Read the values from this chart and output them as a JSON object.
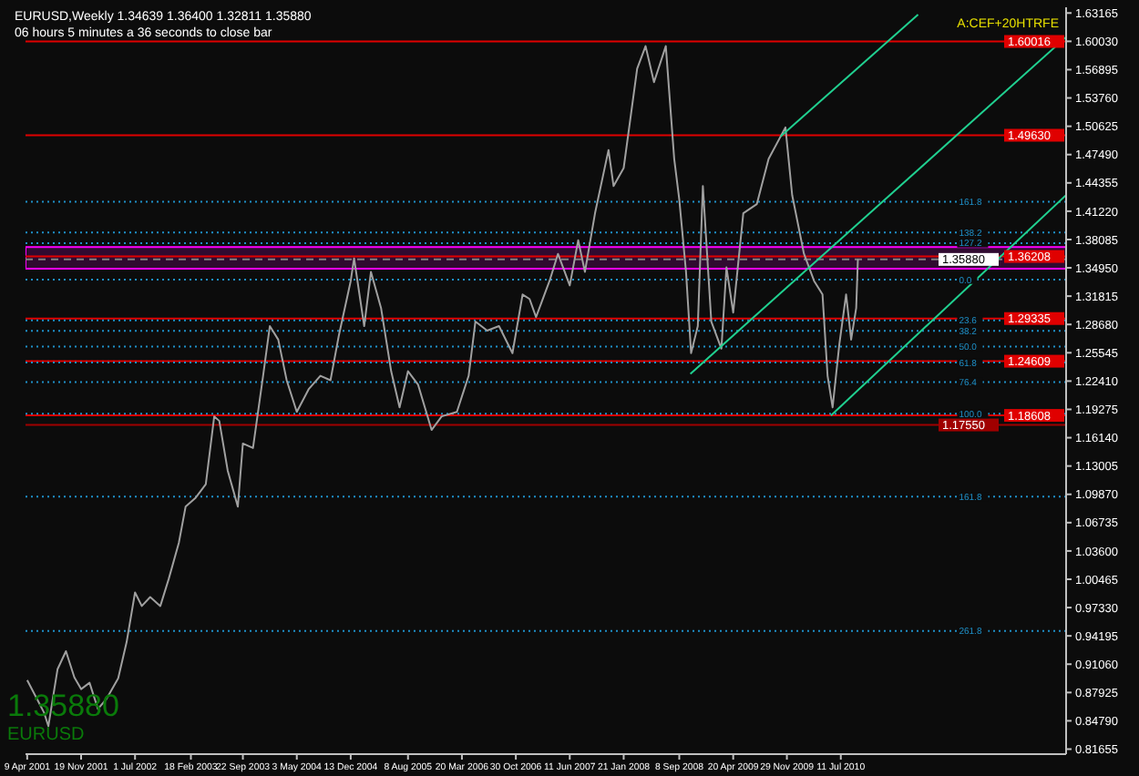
{
  "chart_data": {
    "type": "line",
    "title": "EURUSD,Weekly  1.34639 1.36400 1.32811 1.35880",
    "subtitle": "06 hours 5 minutes a 36 seconds to close bar",
    "annotations": [
      "A:CEF+20HTRFE",
      "1.35880",
      "EURUSD",
      {
        "text": "161.8",
        "x": "2011-11-14",
        "y": 1.4228
      },
      {
        "text": "138.2",
        "x": "2011-11-14",
        "y": 1.3887
      },
      {
        "text": "127.2",
        "x": "2011-11-14",
        "y": 1.3769
      },
      {
        "text": "0.0",
        "x": "2011-11-14",
        "y": 1.3365
      },
      {
        "text": "23.6",
        "x": "2011-11-14",
        "y": 1.2914
      },
      {
        "text": "38.2",
        "x": "2011-11-14",
        "y": 1.2797
      },
      {
        "text": "50.0",
        "x": "2011-11-14",
        "y": 1.2622
      },
      {
        "text": "61.8",
        "x": "2011-11-14",
        "y": 1.2447
      },
      {
        "text": "76.4",
        "x": "2011-11-14",
        "y": 1.223
      },
      {
        "text": "100.0",
        "x": "2011-11-14",
        "y": 1.1879
      },
      {
        "text": "161.8",
        "x": "2011-11-14",
        "y": 1.0961
      },
      {
        "text": "261.8",
        "x": "2011-11-14",
        "y": 0.9475
      }
    ],
    "series": [
      {
        "color": "#a0a0a0",
        "x": [
          "2001-04-09",
          "2001-05-14",
          "2001-06-18",
          "2001-07-06",
          "2001-08-13",
          "2001-09-17",
          "2001-10-22",
          "2001-11-19",
          "2001-12-24",
          "2002-01-28",
          "2002-03-04",
          "2002-04-22",
          "2002-05-27",
          "2002-07-01",
          "2002-07-29",
          "2002-09-02",
          "2002-10-14",
          "2002-11-18",
          "2002-12-30",
          "2003-01-27",
          "2003-03-10",
          "2003-04-21",
          "2003-05-26",
          "2003-06-16",
          "2003-07-21",
          "2003-09-01",
          "2003-09-22",
          "2003-11-03",
          "2003-12-15",
          "2004-01-12",
          "2004-02-16",
          "2004-03-22",
          "2004-05-03",
          "2004-06-21",
          "2004-08-09",
          "2004-09-20",
          "2004-10-25",
          "2004-12-13",
          "2004-12-27",
          "2005-02-07",
          "2005-03-07",
          "2005-04-18",
          "2005-05-30",
          "2005-07-04",
          "2005-08-08",
          "2005-09-19",
          "2005-11-14",
          "2005-12-26",
          "2006-02-27",
          "2006-04-17",
          "2006-05-15",
          "2006-07-03",
          "2006-08-21",
          "2006-10-16",
          "2006-11-27",
          "2006-12-26",
          "2007-01-22",
          "2007-03-19",
          "2007-04-23",
          "2007-06-11",
          "2007-07-16",
          "2007-08-13",
          "2007-09-24",
          "2007-11-19",
          "2007-12-10",
          "2008-01-21",
          "2008-03-17",
          "2008-04-21",
          "2008-05-26",
          "2008-07-14",
          "2008-08-18",
          "2008-09-08",
          "2008-10-06",
          "2008-10-27",
          "2008-11-24",
          "2008-12-15",
          "2009-01-19",
          "2009-03-02",
          "2009-03-23",
          "2009-04-20",
          "2009-06-01",
          "2009-07-27",
          "2009-09-14",
          "2009-11-23",
          "2009-12-21",
          "2010-02-08",
          "2010-03-22",
          "2010-04-26",
          "2010-05-17",
          "2010-06-07",
          "2010-07-05",
          "2010-08-02",
          "2010-08-23",
          "2010-09-13",
          "2010-09-20"
        ],
        "values": [
          0.893,
          0.875,
          0.857,
          0.842,
          0.905,
          0.925,
          0.896,
          0.883,
          0.89,
          0.861,
          0.872,
          0.895,
          0.935,
          0.99,
          0.975,
          0.985,
          0.975,
          1.005,
          1.045,
          1.085,
          1.095,
          1.11,
          1.185,
          1.18,
          1.125,
          1.085,
          1.155,
          1.15,
          1.23,
          1.285,
          1.27,
          1.225,
          1.19,
          1.215,
          1.23,
          1.225,
          1.275,
          1.335,
          1.36,
          1.285,
          1.345,
          1.305,
          1.235,
          1.195,
          1.235,
          1.22,
          1.17,
          1.185,
          1.19,
          1.23,
          1.29,
          1.28,
          1.285,
          1.255,
          1.32,
          1.315,
          1.295,
          1.335,
          1.365,
          1.33,
          1.38,
          1.345,
          1.41,
          1.48,
          1.44,
          1.46,
          1.57,
          1.595,
          1.555,
          1.595,
          1.47,
          1.425,
          1.345,
          1.255,
          1.285,
          1.44,
          1.29,
          1.26,
          1.35,
          1.3,
          1.41,
          1.42,
          1.47,
          1.505,
          1.43,
          1.365,
          1.335,
          1.32,
          1.23,
          1.195,
          1.265,
          1.32,
          1.27,
          1.305,
          1.359
        ]
      },
      {
        "type": "line",
        "color": "#20d090",
        "x": [
          "2008-10-24",
          "2013-02-01"
        ],
        "values": [
          1.232,
          1.605
        ]
      },
      {
        "type": "line",
        "color": "#20d090",
        "x": [
          "2009-11-03",
          "2011-05-28"
        ],
        "values": [
          1.495,
          1.63
        ]
      },
      {
        "type": "line",
        "color": "#20d090",
        "x": [
          "2010-05-31",
          "2013-02-01"
        ],
        "values": [
          1.186,
          1.43
        ]
      }
    ],
    "xlim": [
      "2001-04-02",
      "2013-02-01"
    ],
    "xticks": [
      {
        "value": "2001-04-09",
        "label": "9 Apr 2001"
      },
      {
        "value": "2001-11-19",
        "label": "19 Nov 2001"
      },
      {
        "value": "2002-07-01",
        "label": "1 Jul 2002"
      },
      {
        "value": "2003-02-18",
        "label": "18 Feb 2003"
      },
      {
        "value": "2003-09-22",
        "label": "22 Sep 2003"
      },
      {
        "value": "2004-05-03",
        "label": "3 May 2004"
      },
      {
        "value": "2004-12-13",
        "label": "13 Dec 2004"
      },
      {
        "value": "2005-08-08",
        "label": "8 Aug 2005"
      },
      {
        "value": "2006-03-20",
        "label": "20 Mar 2006"
      },
      {
        "value": "2006-10-30",
        "label": "30 Oct 2006"
      },
      {
        "value": "2007-06-11",
        "label": "11 Jun 2007"
      },
      {
        "value": "2008-01-21",
        "label": "21 Jan 2008"
      },
      {
        "value": "2008-09-08",
        "label": "8 Sep 2008"
      },
      {
        "value": "2009-04-20",
        "label": "20 Apr 2009"
      },
      {
        "value": "2009-11-29",
        "label": "29 Nov 2009"
      },
      {
        "value": "2010-07-11",
        "label": "11 Jul 2010"
      }
    ],
    "ylim": [
      0.811,
      1.638
    ],
    "yticks": [
      {
        "value": 0.81655,
        "label": "0.81655"
      },
      {
        "value": 0.8479,
        "label": "0.84790"
      },
      {
        "value": 0.87925,
        "label": "0.87925"
      },
      {
        "value": 0.9106,
        "label": "0.91060"
      },
      {
        "value": 0.94195,
        "label": "0.94195"
      },
      {
        "value": 0.9733,
        "label": "0.97330"
      },
      {
        "value": 1.00465,
        "label": "1.00465"
      },
      {
        "value": 1.036,
        "label": "1.03600"
      },
      {
        "value": 1.06735,
        "label": "1.06735"
      },
      {
        "value": 1.0987,
        "label": "1.09870"
      },
      {
        "value": 1.13005,
        "label": "1.13005"
      },
      {
        "value": 1.1614,
        "label": "1.16140"
      },
      {
        "value": 1.19275,
        "label": "1.19275"
      },
      {
        "value": 1.2241,
        "label": "1.22410"
      },
      {
        "value": 1.25545,
        "label": "1.25545"
      },
      {
        "value": 1.2868,
        "label": "1.28680"
      },
      {
        "value": 1.31815,
        "label": "1.31815"
      },
      {
        "value": 1.3495,
        "label": "1.34950"
      },
      {
        "value": 1.38085,
        "label": "1.38085"
      },
      {
        "value": 1.4122,
        "label": "1.41220"
      },
      {
        "value": 1.44355,
        "label": "1.44355"
      },
      {
        "value": 1.4749,
        "label": "1.47490"
      },
      {
        "value": 1.50625,
        "label": "1.50625"
      },
      {
        "value": 1.5376,
        "label": "1.53760"
      },
      {
        "value": 1.56895,
        "label": "1.56895"
      },
      {
        "value": 1.6003,
        "label": "1.60030"
      },
      {
        "value": 1.63165,
        "label": "1.63165"
      }
    ],
    "ref_lines": [
      {
        "axis": "y",
        "value": 1.60016,
        "label": "1.60016",
        "color": "#e00000",
        "line_style": "solid"
      },
      {
        "axis": "y",
        "value": 1.4963,
        "label": "1.49630",
        "color": "#e00000",
        "line_style": "solid"
      },
      {
        "axis": "y",
        "value": 1.36208,
        "label": "1.36208",
        "color": "#e00000",
        "line_style": "solid"
      },
      {
        "axis": "y",
        "value": 1.29335,
        "label": "1.29335",
        "color": "#e00000",
        "line_style": "solid"
      },
      {
        "axis": "y",
        "value": 1.24609,
        "label": "1.24609",
        "color": "#e00000",
        "line_style": "solid"
      },
      {
        "axis": "y",
        "value": 1.18608,
        "label": "1.18608",
        "color": "#e00000",
        "line_style": "solid"
      },
      {
        "axis": "y",
        "value": 1.1755,
        "label": "1.17550",
        "color": "#a00000",
        "line_style": "solid"
      },
      {
        "axis": "y",
        "value": 1.3588,
        "label": "1.35880",
        "color": "#808080",
        "line_style": "dashed"
      },
      {
        "axis": "y",
        "value": 1.4228,
        "color": "#1e90c8",
        "line_style": "dotted"
      },
      {
        "axis": "y",
        "value": 1.3887,
        "color": "#1e90c8",
        "line_style": "dotted"
      },
      {
        "axis": "y",
        "value": 1.3769,
        "color": "#1e90c8",
        "line_style": "dotted"
      },
      {
        "axis": "y",
        "value": 1.3365,
        "color": "#1e90c8",
        "line_style": "dotted"
      },
      {
        "axis": "y",
        "value": 1.2914,
        "color": "#1e90c8",
        "line_style": "dotted"
      },
      {
        "axis": "y",
        "value": 1.2797,
        "color": "#1e90c8",
        "line_style": "dotted"
      },
      {
        "axis": "y",
        "value": 1.2622,
        "color": "#1e90c8",
        "line_style": "dotted"
      },
      {
        "axis": "y",
        "value": 1.2447,
        "color": "#1e90c8",
        "line_style": "dotted"
      },
      {
        "axis": "y",
        "value": 1.223,
        "color": "#1e90c8",
        "line_style": "dotted"
      },
      {
        "axis": "y",
        "value": 1.1879,
        "color": "#1e90c8",
        "line_style": "dotted"
      },
      {
        "axis": "y",
        "value": 1.0961,
        "color": "#1e90c8",
        "line_style": "dotted"
      },
      {
        "axis": "y",
        "value": 0.9475,
        "color": "#1e90c8",
        "line_style": "dotted"
      }
    ],
    "bands": [
      {
        "axis": "y",
        "from": 1.3485,
        "to": 1.3726,
        "color": "#ff00ff"
      }
    ],
    "marker": "none",
    "line_style": "solid"
  }
}
